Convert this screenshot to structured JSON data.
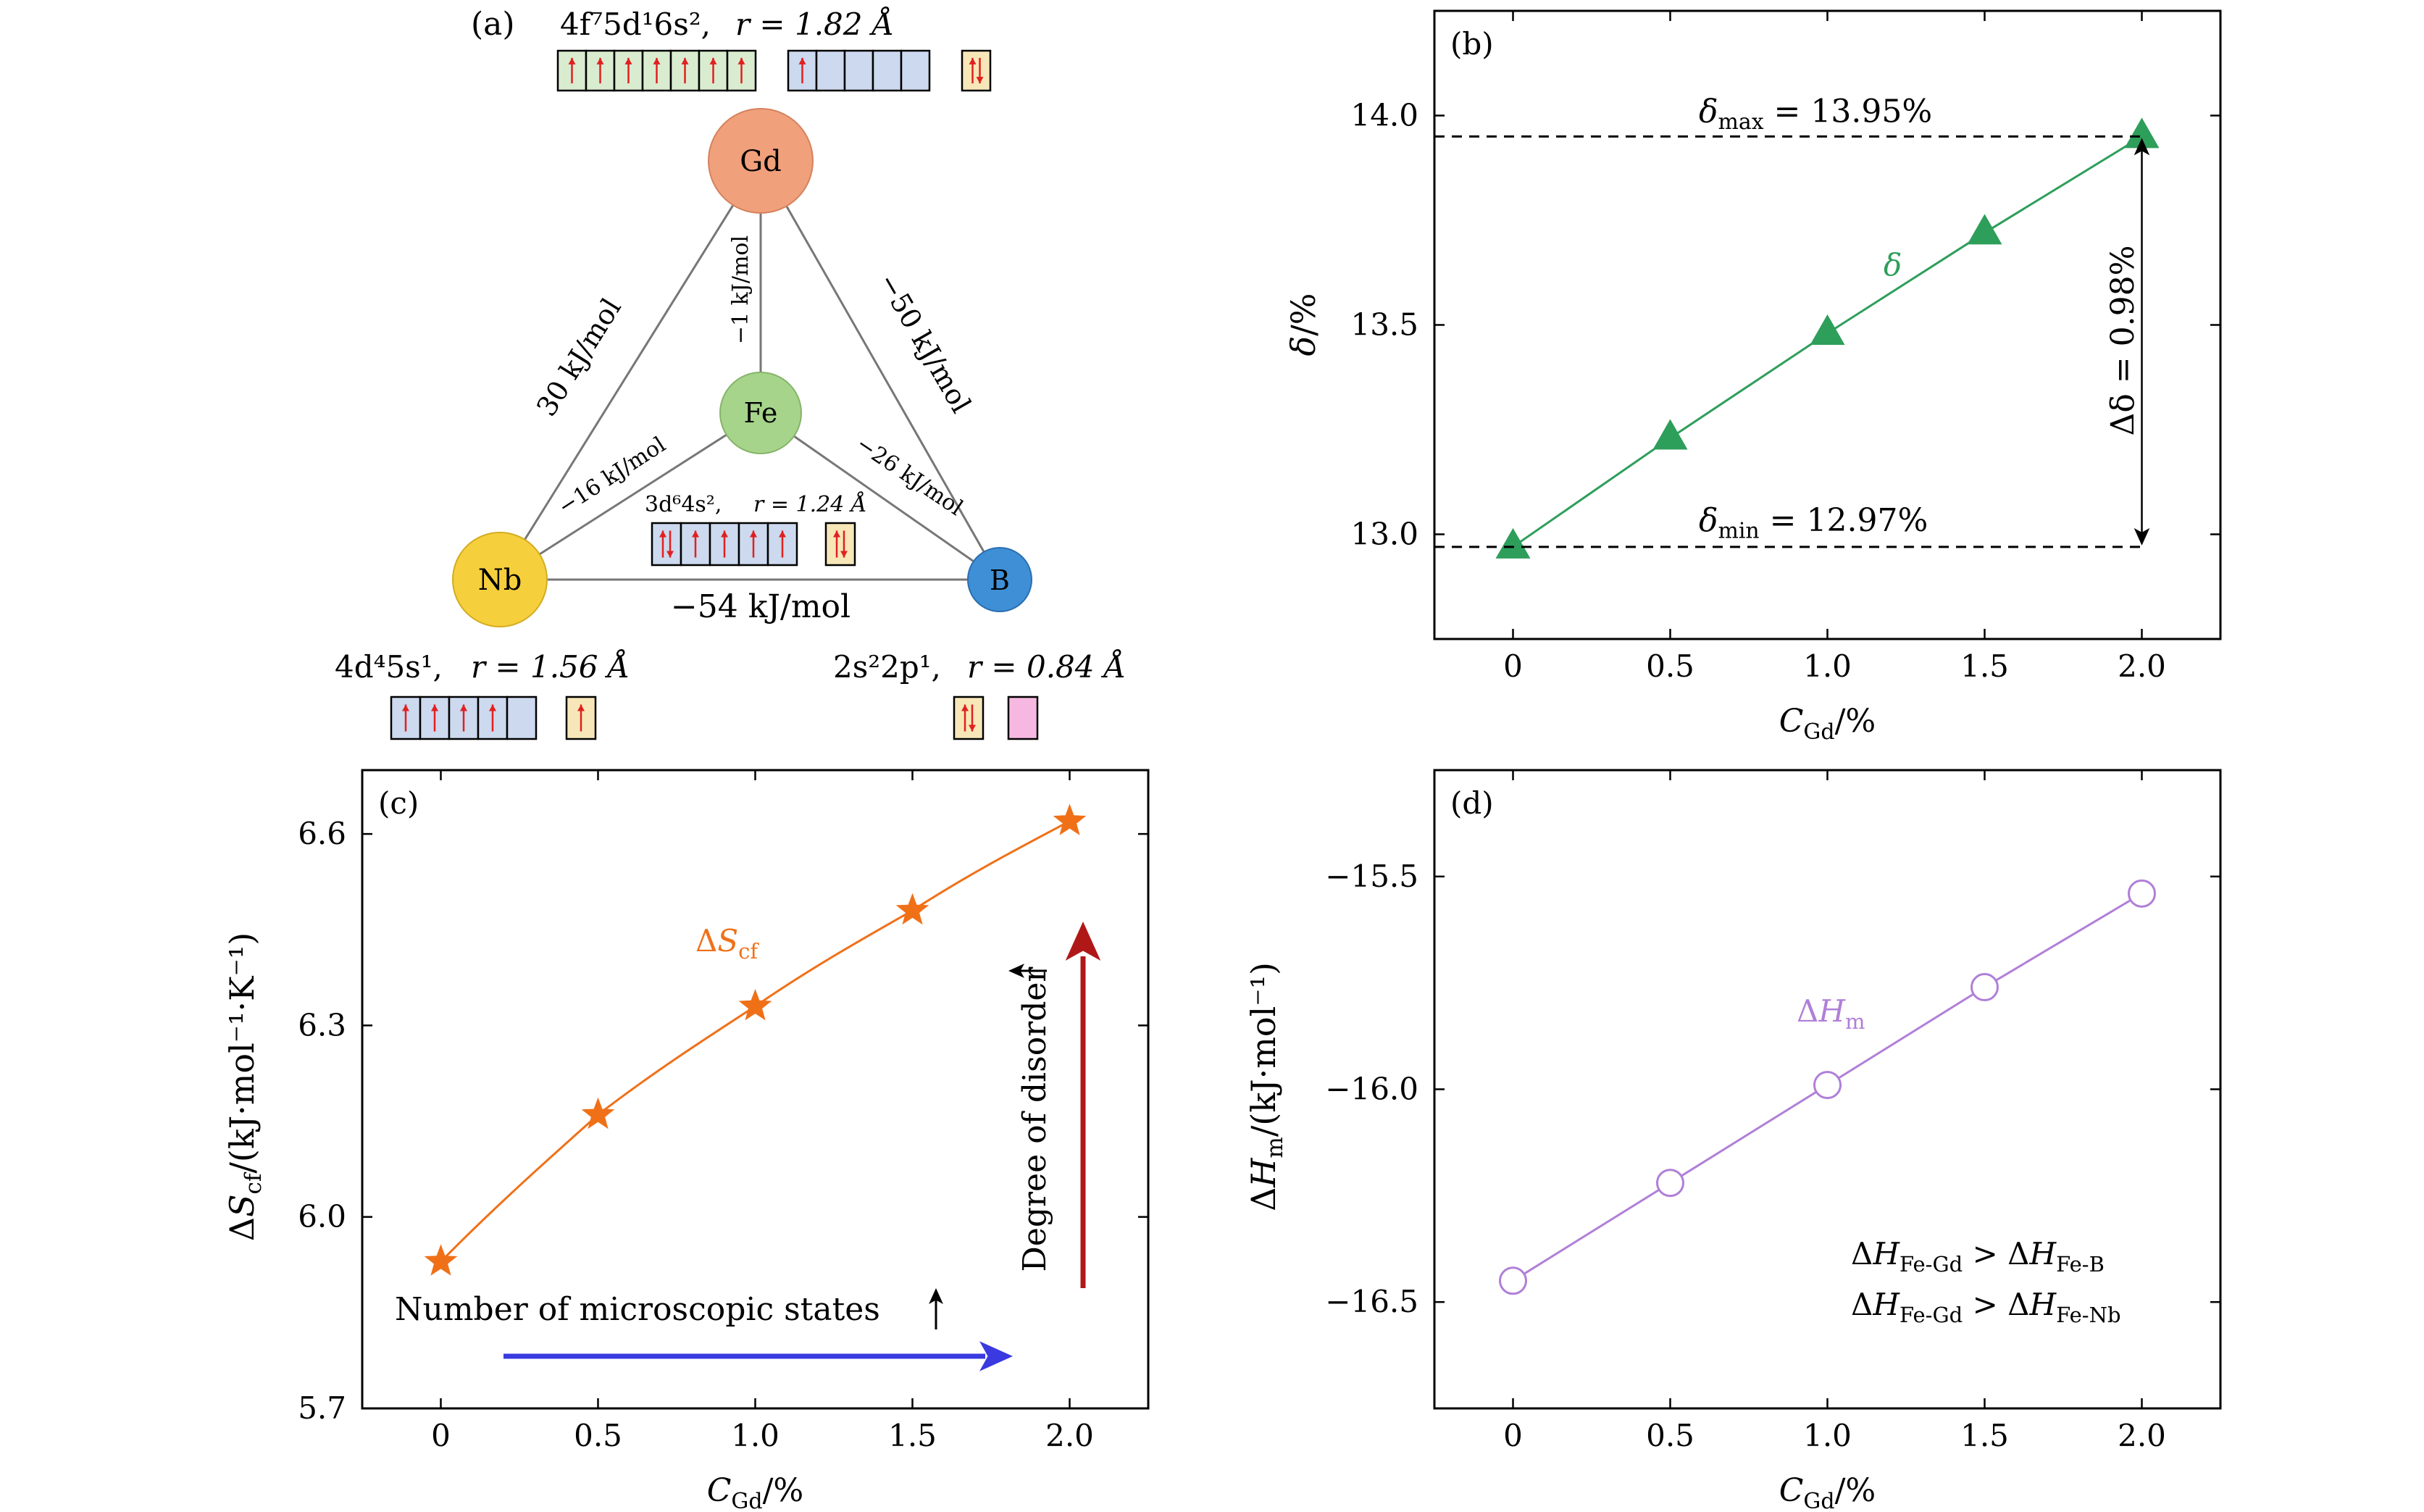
{
  "panel_a": {
    "label": "(a)",
    "gd": {
      "name": "Gd",
      "config": "4f⁷5d¹6s²,",
      "radius": "r = 1.82 Å",
      "color": "#f0a07a"
    },
    "fe": {
      "name": "Fe",
      "config": "3d⁶4s²,",
      "radius": "r = 1.24 Å",
      "color": "#a6d48a"
    },
    "nb": {
      "name": "Nb",
      "config": "4d⁴5s¹,",
      "radius": "r = 1.56 Å",
      "color": "#f6cf3c"
    },
    "b": {
      "name": "B",
      "config": "2s²2p¹,",
      "radius": "r = 0.84 Å",
      "color": "#3f8fd6"
    },
    "bonds": {
      "gd_nb": "30 kJ/mol",
      "gd_fe": "−1 kJ/mol",
      "gd_b": "−50 kJ/mol",
      "nb_fe": "−16 kJ/mol",
      "fe_b": "−26 kJ/mol",
      "nb_b": "−54 kJ/mol"
    },
    "colors": {
      "arrow": "#e02020",
      "green_box": "#d9ecd0",
      "blue_box": "#ccd9ee",
      "yellow_box": "#f7e7b8",
      "pink_box": "#f6b8e0"
    }
  },
  "chart_data": [
    {
      "panel": "(b)",
      "type": "line",
      "x": [
        0,
        0.5,
        1.0,
        1.5,
        2.0
      ],
      "series": [
        {
          "name": "δ",
          "values": [
            12.97,
            13.23,
            13.48,
            13.72,
            13.95
          ],
          "color": "#2e9e5b",
          "marker": "triangle"
        }
      ],
      "xlabel": "C_Gd/%",
      "ylabel": "δ/%",
      "xlim": [
        -0.25,
        2.25
      ],
      "ylim": [
        12.75,
        14.25
      ],
      "xticks": [
        "0",
        "0.5",
        "1.0",
        "1.5",
        "2.0"
      ],
      "yticks": [
        "13.0",
        "13.5",
        "14.0"
      ],
      "annotations": {
        "max": "= 13.95%",
        "min": "= 12.97%",
        "delta": "Δδ = 0.98%",
        "max_sub": "max",
        "min_sub": "min",
        "series_label": "δ"
      }
    },
    {
      "panel": "(c)",
      "type": "line",
      "x": [
        0,
        0.5,
        1.0,
        1.5,
        2.0
      ],
      "series": [
        {
          "name": "ΔS_cf",
          "values": [
            5.93,
            6.16,
            6.33,
            6.48,
            6.62
          ],
          "color": "#f07018",
          "marker": "star"
        }
      ],
      "xlabel": "C_Gd/%",
      "ylabel": "ΔS_cf/(kJ·mol⁻¹·K⁻¹)",
      "xlim": [
        -0.25,
        2.25
      ],
      "ylim": [
        5.7,
        6.7
      ],
      "xticks": [
        "0",
        "0.5",
        "1.0",
        "1.5",
        "2.0"
      ],
      "yticks": [
        "5.7",
        "6.0",
        "6.3",
        "6.6"
      ],
      "annotations": {
        "states": "Number of microscopic states",
        "disorder": "Degree of disorder",
        "series_label": "ΔS"
      }
    },
    {
      "panel": "(d)",
      "type": "line",
      "x": [
        0,
        0.5,
        1.0,
        1.5,
        2.0
      ],
      "series": [
        {
          "name": "ΔH_m",
          "values": [
            -16.45,
            -16.22,
            -15.99,
            -15.76,
            -15.54
          ],
          "color": "#b07fd8",
          "marker": "open-circle"
        }
      ],
      "xlabel": "C_Gd/%",
      "ylabel": "ΔH_m/(kJ·mol⁻¹)",
      "xlim": [
        -0.25,
        2.25
      ],
      "ylim": [
        -16.75,
        -15.25
      ],
      "xticks": [
        "0",
        "0.5",
        "1.0",
        "1.5",
        "2.0"
      ],
      "yticks": [
        "−16.5",
        "−16.0",
        "−15.5"
      ],
      "annotations": {
        "line1": "ΔH_Fe-Gd > ΔH_Fe-B",
        "line2": "ΔH_Fe-Gd > ΔH_Fe-Nb",
        "series_label": "ΔH"
      }
    }
  ]
}
